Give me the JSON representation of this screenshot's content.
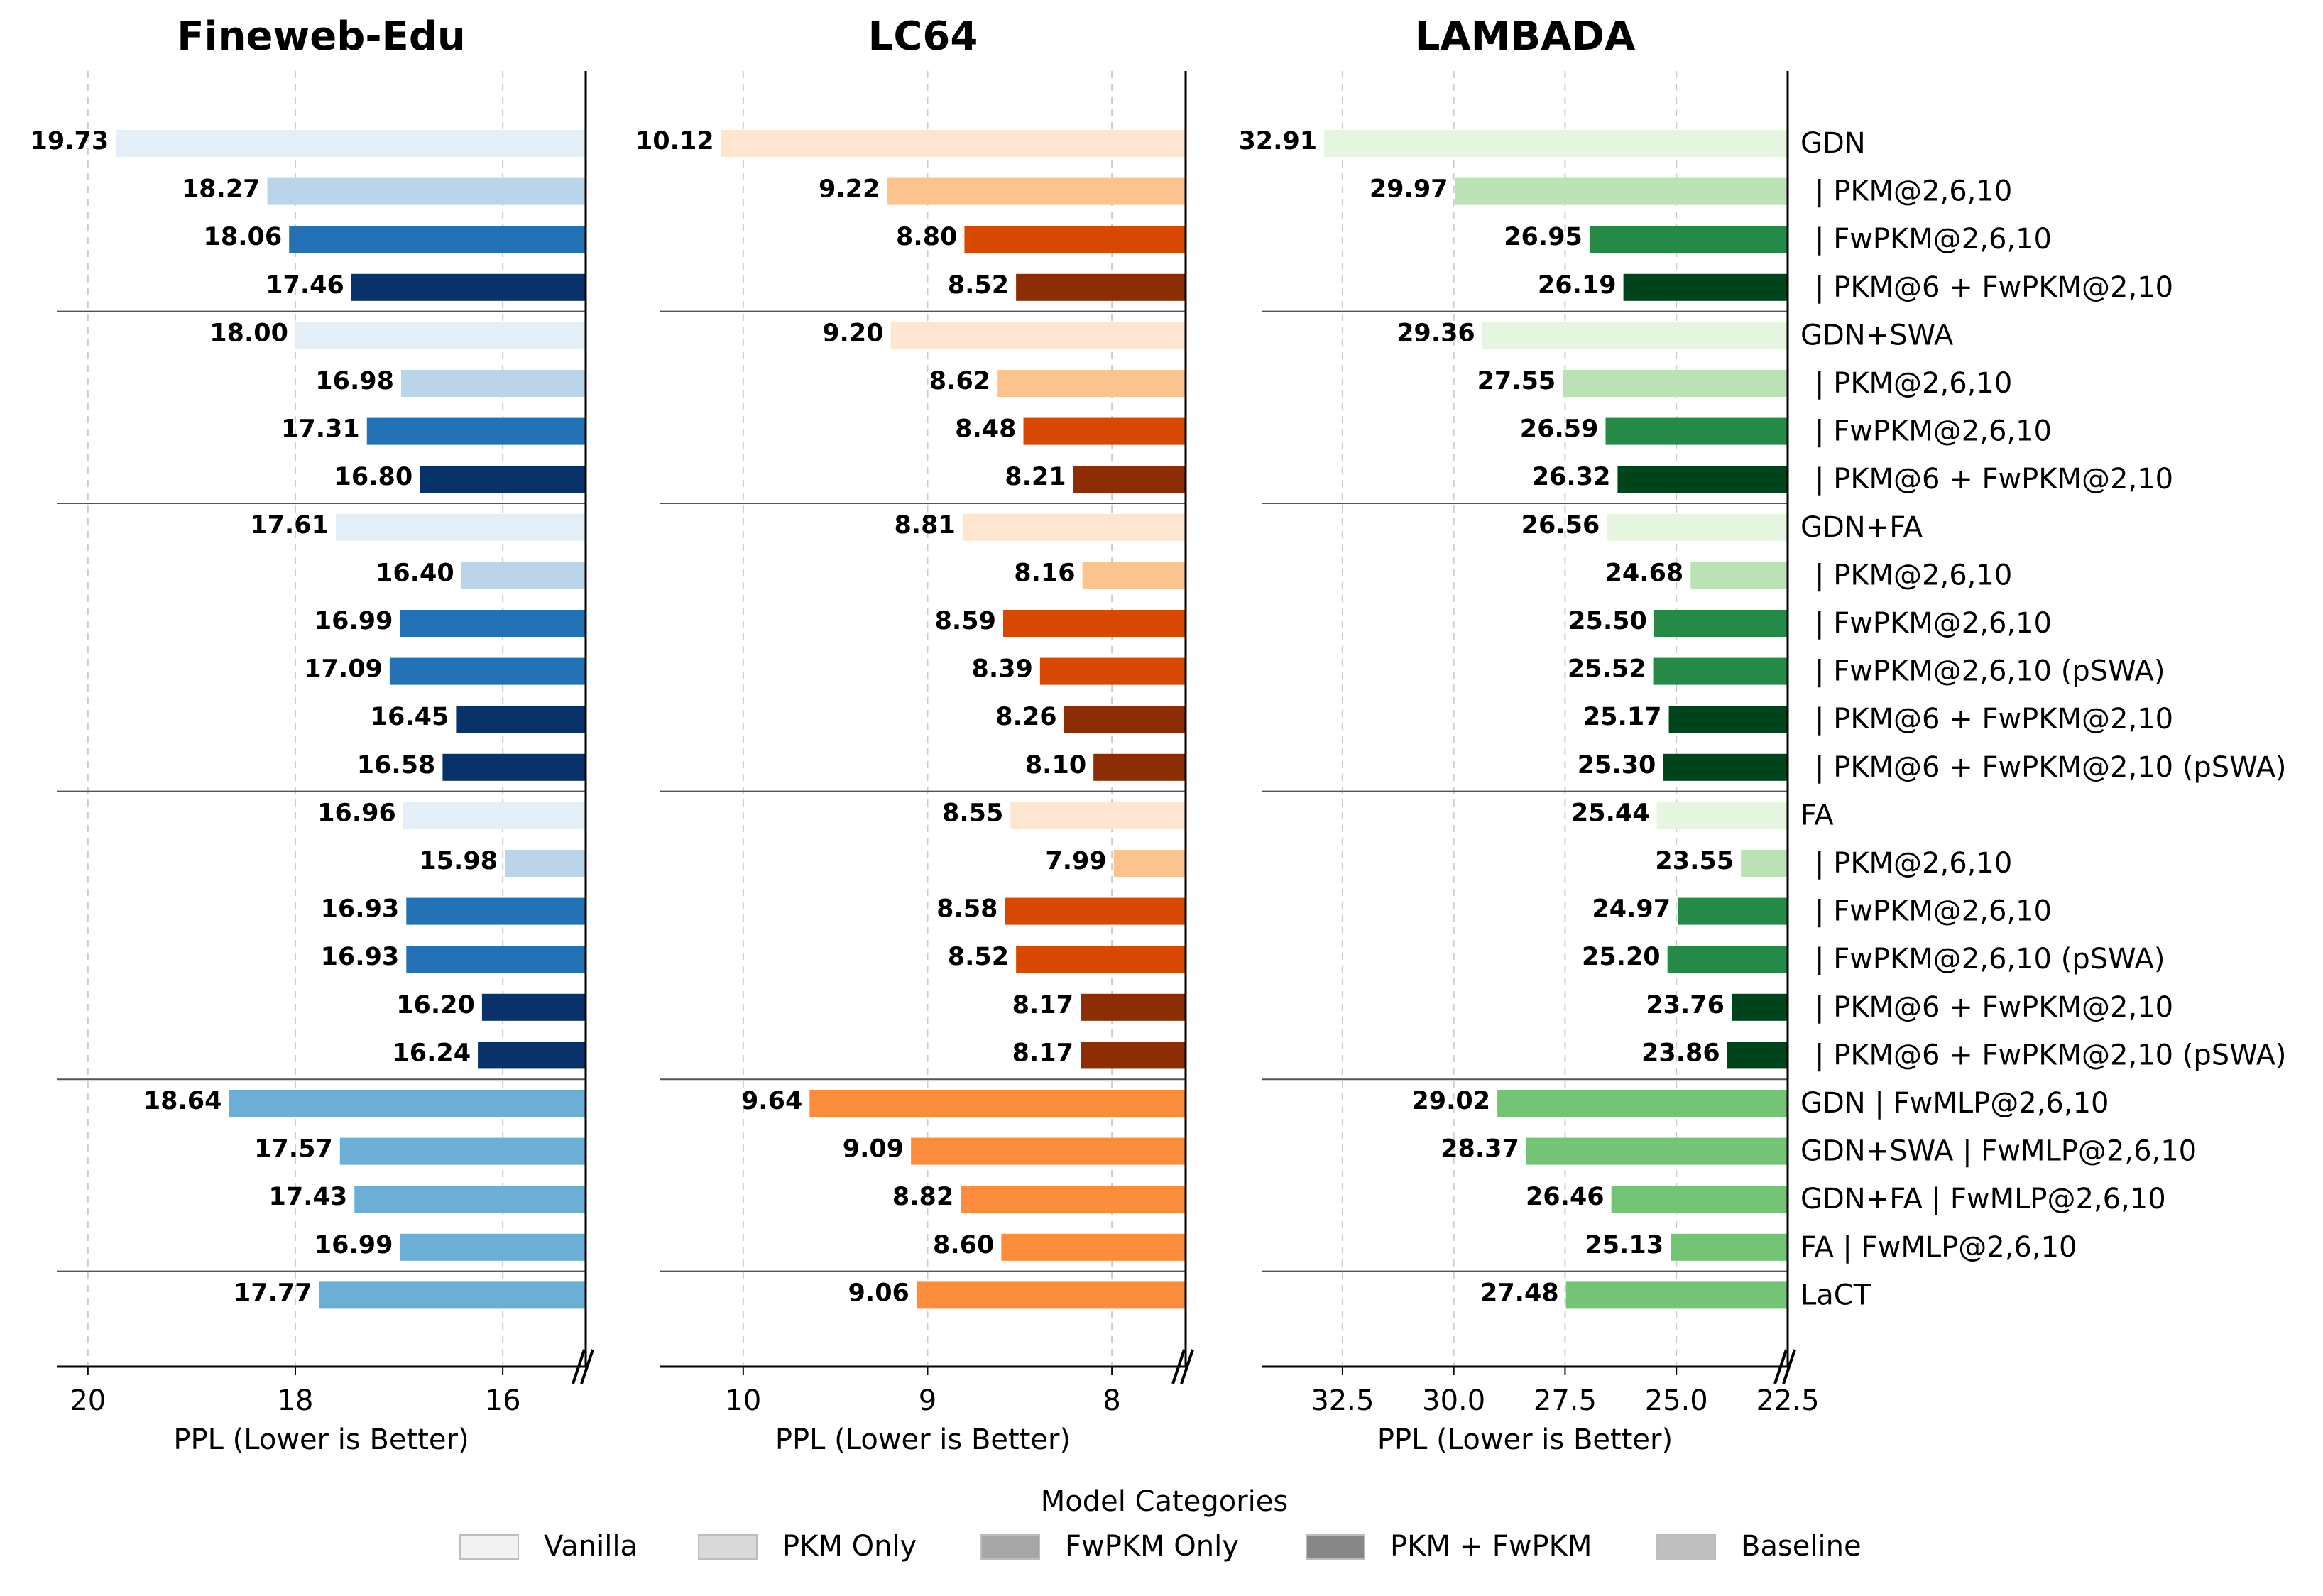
{
  "chart_data": {
    "type": "bar",
    "orientation": "horizontal",
    "row_labels": [
      "GDN",
      "| PKM@2,6,10",
      "| FwPKM@2,6,10",
      "| PKM@6 + FwPKM@2,10",
      "GDN+SWA",
      "| PKM@2,6,10",
      "| FwPKM@2,6,10",
      "| PKM@6 + FwPKM@2,10",
      "GDN+FA",
      "| PKM@2,6,10",
      "| FwPKM@2,6,10",
      "| FwPKM@2,6,10 (pSWA)",
      "| PKM@6 + FwPKM@2,10",
      "| PKM@6 + FwPKM@2,10 (pSWA)",
      "FA",
      "| PKM@2,6,10",
      "| FwPKM@2,6,10",
      "| FwPKM@2,6,10 (pSWA)",
      "| PKM@6 + FwPKM@2,10",
      "| PKM@6 + FwPKM@2,10 (pSWA)",
      "GDN | FwMLP@2,6,10",
      "GDN+SWA | FwMLP@2,6,10",
      "GDN+FA | FwMLP@2,6,10",
      "FA | FwMLP@2,6,10",
      "LaCT"
    ],
    "row_category": [
      "Vanilla",
      "PKM Only",
      "FwPKM Only",
      "PKM + FwPKM",
      "Vanilla",
      "PKM Only",
      "FwPKM Only",
      "PKM + FwPKM",
      "Vanilla",
      "PKM Only",
      "FwPKM Only",
      "FwPKM Only",
      "PKM + FwPKM",
      "PKM + FwPKM",
      "Vanilla",
      "PKM Only",
      "FwPKM Only",
      "FwPKM Only",
      "PKM + FwPKM",
      "PKM + FwPKM",
      "Baseline",
      "Baseline",
      "Baseline",
      "Baseline",
      "Baseline"
    ],
    "group_breaks_after": [
      3,
      7,
      13,
      19,
      23
    ],
    "xlabel": "PPL (Lower is Better)",
    "x_inverted": true,
    "grid": "vertical dashed",
    "panels": [
      {
        "title": "Fineweb-Edu",
        "xlim": [
          20.3,
          15.2
        ],
        "xticks": [
          20,
          18,
          16
        ],
        "xtick_labels": [
          "20",
          "18",
          "16"
        ],
        "values": [
          19.73,
          18.27,
          18.06,
          17.46,
          18.0,
          16.98,
          17.31,
          16.8,
          17.61,
          16.4,
          16.99,
          17.09,
          16.45,
          16.58,
          16.96,
          15.98,
          16.93,
          16.93,
          16.2,
          16.24,
          18.64,
          17.57,
          17.43,
          16.99,
          17.77
        ],
        "value_labels": [
          "19.73",
          "18.27",
          "18.06",
          "17.46",
          "18.00",
          "16.98",
          "17.31",
          "16.80",
          "17.61",
          "16.40",
          "16.99",
          "17.09",
          "16.45",
          "16.58",
          "16.96",
          "15.98",
          "16.93",
          "16.93",
          "16.20",
          "16.24",
          "18.64",
          "17.57",
          "17.43",
          "16.99",
          "17.77"
        ],
        "colors": {
          "Vanilla": "#e4eef9",
          "PKM Only": "#b9d5ea",
          "FwPKM Only": "#2272b5",
          "PKM + FwPKM": "#09326b",
          "Baseline": "#6baed6"
        }
      },
      {
        "title": "LC64",
        "xlim": [
          10.45,
          7.6
        ],
        "xticks": [
          10,
          9,
          8
        ],
        "xtick_labels": [
          "10",
          "9",
          "8"
        ],
        "values": [
          10.12,
          9.22,
          8.8,
          8.52,
          9.2,
          8.62,
          8.48,
          8.21,
          8.81,
          8.16,
          8.59,
          8.39,
          8.26,
          8.1,
          8.55,
          7.99,
          8.58,
          8.52,
          8.17,
          8.17,
          9.64,
          9.09,
          8.82,
          8.6,
          9.06
        ],
        "value_labels": [
          "10.12",
          "9.22",
          "8.80",
          "8.52",
          "9.20",
          "8.62",
          "8.48",
          "8.21",
          "8.81",
          "8.16",
          "8.59",
          "8.39",
          "8.26",
          "8.10",
          "8.55",
          "7.99",
          "8.58",
          "8.52",
          "8.17",
          "8.17",
          "9.64",
          "9.09",
          "8.82",
          "8.60",
          "9.06"
        ],
        "colors": {
          "Vanilla": "#fee6ce",
          "PKM Only": "#fdc38d",
          "FwPKM Only": "#d84801",
          "PKM + FwPKM": "#8c2d04",
          "Baseline": "#fd8d3c"
        }
      },
      {
        "title": "LAMBADA",
        "xlim": [
          34.3,
          22.5
        ],
        "xticks": [
          32.5,
          30.0,
          27.5,
          25.0,
          22.5
        ],
        "xtick_labels": [
          "32.5",
          "30.0",
          "27.5",
          "25.0",
          "22.5"
        ],
        "values": [
          32.91,
          29.97,
          26.95,
          26.19,
          29.36,
          27.55,
          26.59,
          26.32,
          26.56,
          24.68,
          25.5,
          25.52,
          25.17,
          25.3,
          25.44,
          23.55,
          24.97,
          25.2,
          23.76,
          23.86,
          29.02,
          28.37,
          26.46,
          25.13,
          27.48
        ],
        "value_labels": [
          "32.91",
          "29.97",
          "26.95",
          "26.19",
          "29.36",
          "27.55",
          "26.59",
          "26.32",
          "26.56",
          "24.68",
          "25.50",
          "25.52",
          "25.17",
          "25.30",
          "25.44",
          "23.55",
          "24.97",
          "25.20",
          "23.76",
          "23.86",
          "29.02",
          "28.37",
          "26.46",
          "25.13",
          "27.48"
        ],
        "colors": {
          "Vanilla": "#e5f5e0",
          "PKM Only": "#b9e3b2",
          "FwPKM Only": "#238b45",
          "PKM + FwPKM": "#00441b",
          "Baseline": "#74c476"
        }
      }
    ],
    "legend": {
      "title": "Model Categories",
      "placement": "bottom-center",
      "items": [
        {
          "label": "Vanilla",
          "color": "#f2f2f2"
        },
        {
          "label": "PKM Only",
          "color": "#d9d9d9"
        },
        {
          "label": "FwPKM Only",
          "color": "#a6a6a6"
        },
        {
          "label": "PKM + FwPKM",
          "color": "#878787"
        },
        {
          "label": "Baseline",
          "color": "#bfbfbf"
        }
      ]
    }
  }
}
